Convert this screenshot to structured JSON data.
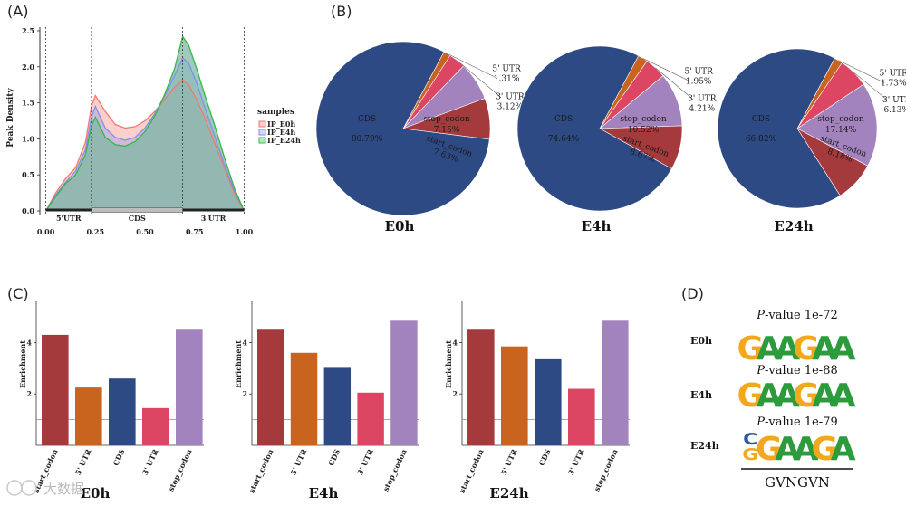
{
  "panels": {
    "a": "(A)",
    "b": "(B)",
    "c": "(C)",
    "d": "(D)"
  },
  "colors": {
    "start_codon": "#a53a3c",
    "utr5": "#c8641e",
    "cds": "#2e4a85",
    "utr3": "#dc4662",
    "stop_codon": "#a383bd",
    "ip_e0h": "#f3796c",
    "ip_e4h": "#7f8fee",
    "ip_e24h": "#39b54a",
    "overlap_fill": "#7fb8a5",
    "motif_G": "#f2a81d",
    "motif_A": "#2c9b3c",
    "motif_C": "#2b57a8",
    "motif_T": "#d42a2a"
  },
  "chart_data": [
    {
      "panel": "A",
      "type": "line",
      "title": "",
      "xlabel": "",
      "ylabel": "Peak Density",
      "xlim": [
        -0.03,
        1.03
      ],
      "ylim": [
        -0.05,
        2.55
      ],
      "xticks": [
        "0.00",
        "0.25",
        "0.50",
        "0.75",
        "1.00"
      ],
      "xtick_values": [
        0,
        0.25,
        0.5,
        0.75,
        1
      ],
      "yticks": [
        "0.0",
        "0.5",
        "1.0",
        "1.5",
        "2.0",
        "2.5"
      ],
      "ytick_values": [
        0,
        0.5,
        1,
        1.5,
        2,
        2.5
      ],
      "boundaries": [
        0,
        0.23,
        0.69,
        1
      ],
      "regions": [
        {
          "label": "5'UTR",
          "start": 0,
          "end": 0.23
        },
        {
          "label": "CDS",
          "start": 0.23,
          "end": 0.69
        },
        {
          "label": "3'UTR",
          "start": 0.69,
          "end": 1
        }
      ],
      "legend_title": "samples",
      "legend_position": "right",
      "x": [
        0,
        0.05,
        0.1,
        0.15,
        0.2,
        0.23,
        0.25,
        0.3,
        0.35,
        0.4,
        0.45,
        0.5,
        0.55,
        0.6,
        0.65,
        0.69,
        0.72,
        0.76,
        0.8,
        0.85,
        0.9,
        0.95,
        1.0
      ],
      "series": [
        {
          "name": "IP_E0h",
          "values": [
            0.0,
            0.25,
            0.45,
            0.6,
            0.95,
            1.45,
            1.6,
            1.38,
            1.2,
            1.15,
            1.17,
            1.25,
            1.38,
            1.55,
            1.72,
            1.82,
            1.75,
            1.55,
            1.3,
            0.95,
            0.6,
            0.25,
            0.0
          ]
        },
        {
          "name": "IP_E4h",
          "values": [
            0.0,
            0.22,
            0.4,
            0.55,
            0.85,
            1.3,
            1.45,
            1.15,
            1.02,
            0.98,
            1.02,
            1.15,
            1.35,
            1.6,
            1.88,
            2.12,
            2.05,
            1.78,
            1.45,
            1.05,
            0.65,
            0.28,
            0.0
          ]
        },
        {
          "name": "IP_E24h",
          "values": [
            0.0,
            0.2,
            0.38,
            0.5,
            0.78,
            1.18,
            1.3,
            1.02,
            0.92,
            0.9,
            0.96,
            1.1,
            1.32,
            1.62,
            1.98,
            2.42,
            2.3,
            1.98,
            1.62,
            1.2,
            0.75,
            0.32,
            0.0
          ]
        }
      ]
    },
    {
      "panel": "B",
      "type": "pie",
      "title": "E0h",
      "categories": [
        "CDS",
        "5' UTR",
        "3' UTR",
        "stop_codon",
        "start_codon"
      ],
      "values": [
        80.79,
        1.31,
        3.12,
        7.15,
        7.63
      ],
      "labels": [
        "80.79%",
        "1.31%",
        "3.12%",
        "7.15%",
        "7.63%"
      ]
    },
    {
      "panel": "B",
      "type": "pie",
      "title": "E4h",
      "categories": [
        "CDS",
        "5' UTR",
        "3' UTR",
        "stop_codon",
        "start_codon"
      ],
      "values": [
        74.64,
        1.95,
        4.21,
        10.52,
        8.67
      ],
      "labels": [
        "74.64%",
        "1.95%",
        "4.21%",
        "10.52%",
        "8.67%"
      ]
    },
    {
      "panel": "B",
      "type": "pie",
      "title": "E24h",
      "categories": [
        "CDS",
        "5' UTR",
        "3' UTR",
        "stop_codon",
        "start_codon"
      ],
      "values": [
        66.82,
        1.73,
        6.13,
        17.14,
        8.18
      ],
      "labels": [
        "66.82%",
        "1.73%",
        "6.13%",
        "17.14%",
        "8.18%"
      ]
    },
    {
      "panel": "C",
      "type": "bar",
      "title": "E0h",
      "ylabel": "Enrichment",
      "categories": [
        "start_codon",
        "5' UTR",
        "CDS",
        "3' UTR",
        "stop_codon"
      ],
      "values": [
        4.3,
        2.25,
        2.6,
        1.45,
        4.5
      ],
      "ylim": [
        0,
        5.6
      ],
      "yticks": [
        2,
        4
      ],
      "reference_line": 1
    },
    {
      "panel": "C",
      "type": "bar",
      "title": "E4h",
      "ylabel": "Enrichment",
      "categories": [
        "start_codon",
        "5' UTR",
        "CDS",
        "3' UTR",
        "stop_codon"
      ],
      "values": [
        4.5,
        3.6,
        3.05,
        2.05,
        4.85
      ],
      "ylim": [
        0,
        5.6
      ],
      "yticks": [
        2,
        4
      ],
      "reference_line": 1
    },
    {
      "panel": "C",
      "type": "bar",
      "title": "E24h",
      "ylabel": "Enrichment",
      "categories": [
        "start_codon",
        "5' UTR",
        "CDS",
        "3' UTR",
        "stop_codon"
      ],
      "values": [
        4.5,
        3.85,
        3.35,
        2.2,
        4.85
      ],
      "ylim": [
        0,
        5.6
      ],
      "yticks": [
        2,
        4
      ],
      "reference_line": 1
    }
  ],
  "motifs": [
    {
      "sample": "E0h",
      "pvalue_prefix": "P",
      "pvalue_text": "-value 1e-72",
      "letters": [
        "G",
        "A",
        "A",
        "G",
        "A",
        "A"
      ]
    },
    {
      "sample": "E4h",
      "pvalue_prefix": "P",
      "pvalue_text": "-value 1e-88",
      "letters": [
        "G",
        "A",
        "A",
        "G",
        "A",
        "A"
      ]
    },
    {
      "sample": "E24h",
      "pvalue_prefix": "P",
      "pvalue_text": "-value 1e-79",
      "letters": [
        "G",
        "G",
        "A",
        "A",
        "G",
        "A"
      ]
    }
  ],
  "motif_consensus": "GVNGVN",
  "watermark": "大数据"
}
